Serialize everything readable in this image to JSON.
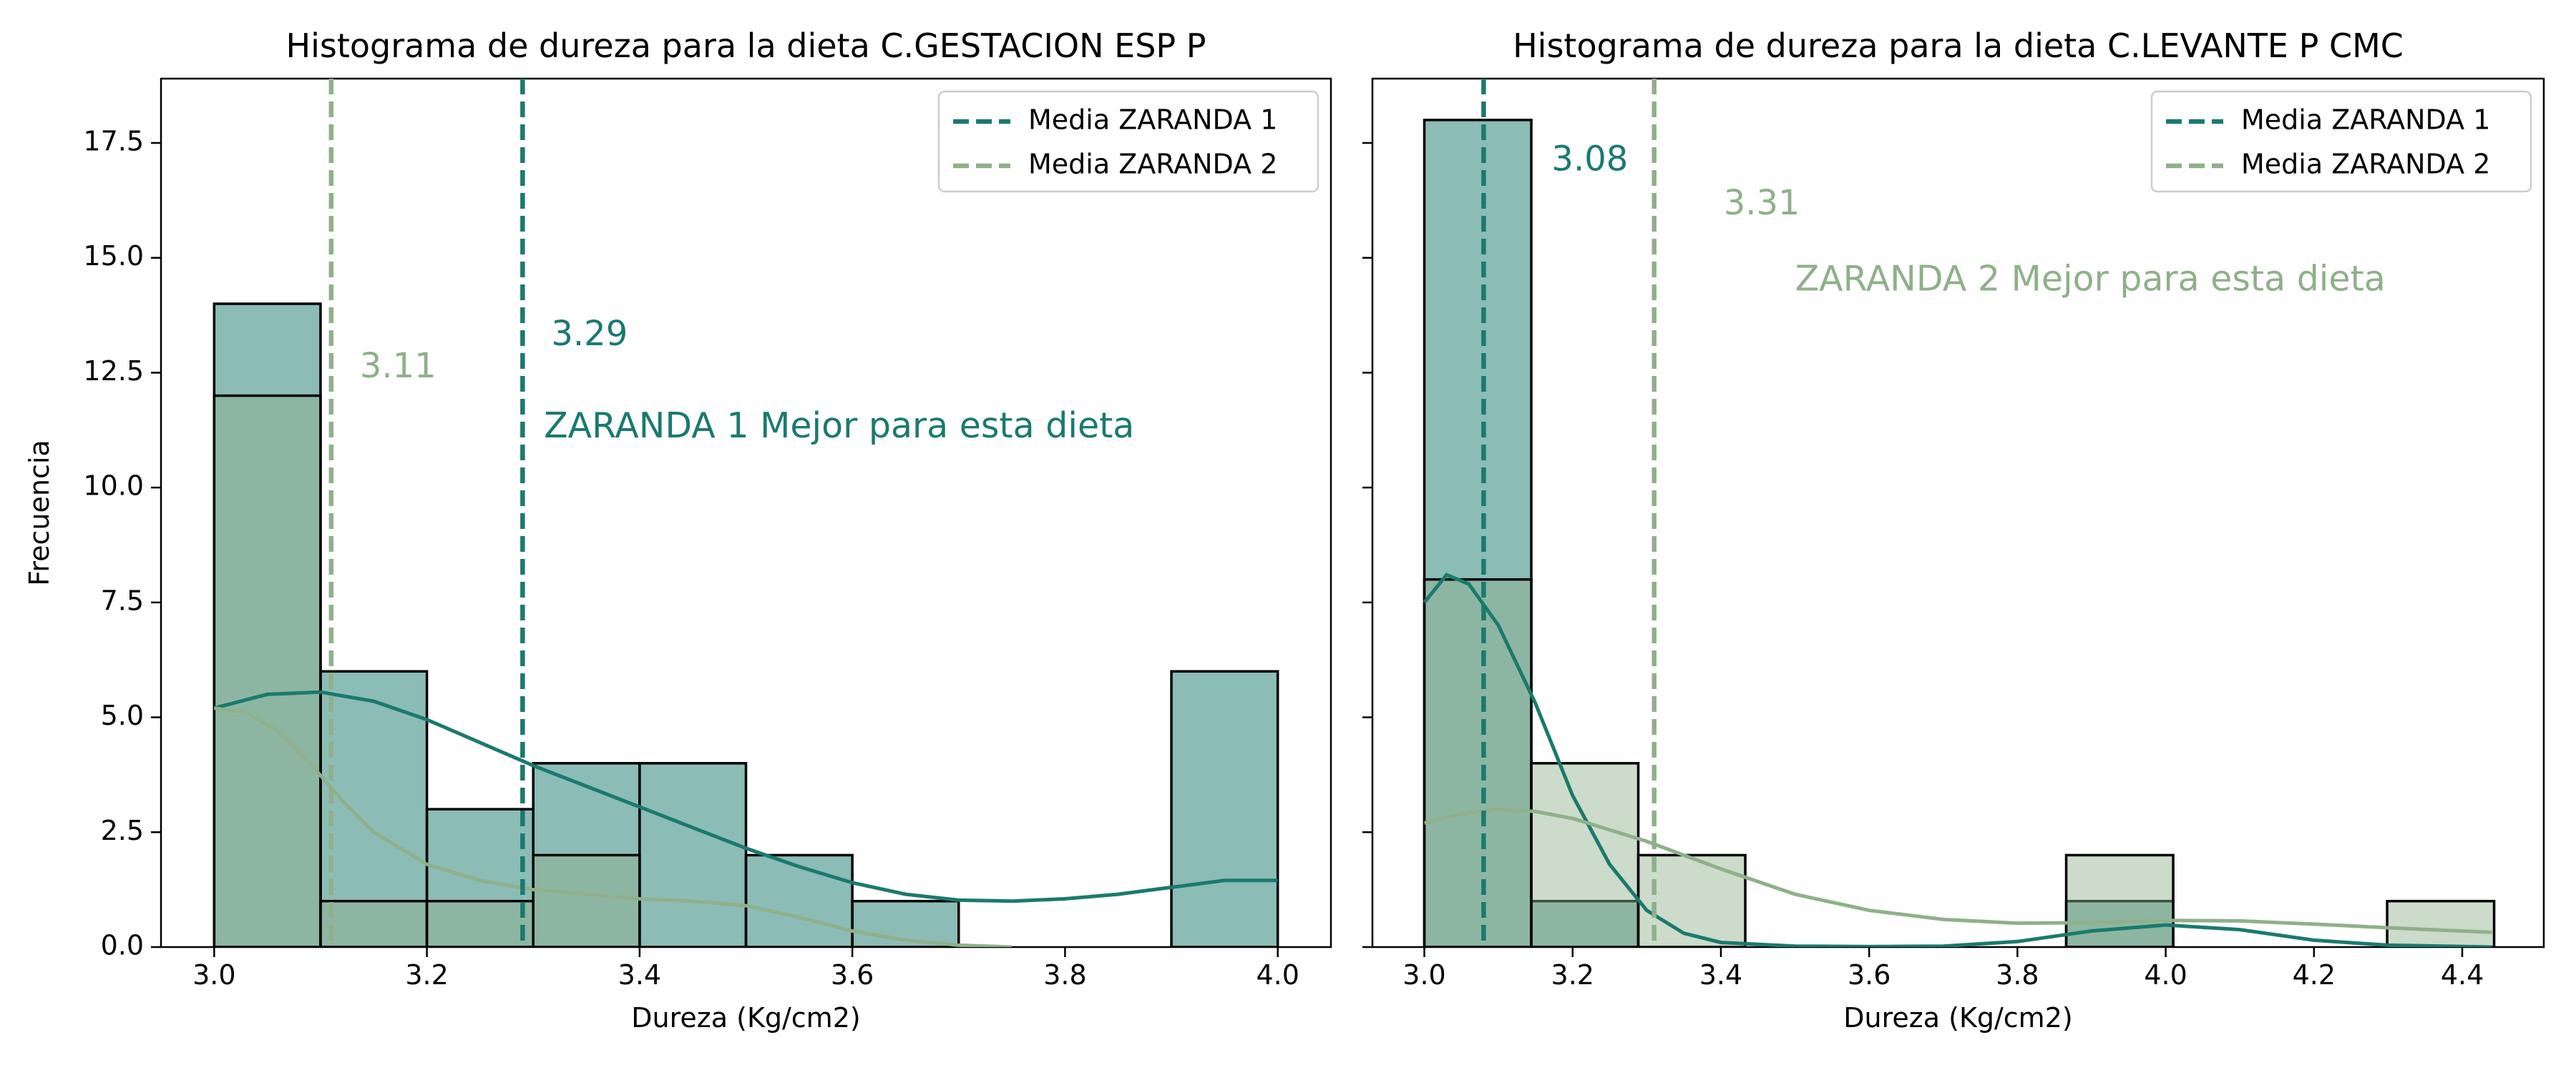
{
  "chart_data": [
    {
      "type": "histogram",
      "title": "Histograma de dureza para la dieta C.GESTACION ESP P",
      "xlabel": "Dureza (Kg/cm2)",
      "ylabel": "Frecuencia",
      "xlim": [
        2.95,
        4.05
      ],
      "ylim": [
        0,
        18.9
      ],
      "xticks": [
        3.0,
        3.2,
        3.4,
        3.6,
        3.8,
        4.0
      ],
      "xtick_labels": [
        "3.0",
        "3.2",
        "3.4",
        "3.6",
        "3.8",
        "4.0"
      ],
      "yticks": [
        0,
        2.5,
        5,
        7.5,
        10,
        12.5,
        15,
        17.5
      ],
      "ytick_labels": [
        "0.0",
        "2.5",
        "5.0",
        "7.5",
        "10.0",
        "12.5",
        "15.0",
        "17.5"
      ],
      "bin_edges": [
        3.0,
        3.1,
        3.2,
        3.3,
        3.4,
        3.5,
        3.6,
        3.7,
        3.8,
        3.9,
        4.0
      ],
      "grid": false,
      "legend_position": "upper right",
      "series": [
        {
          "name": "Media ZARANDA 1",
          "color": "#1a7a6e",
          "counts": [
            14,
            6,
            3,
            4,
            4,
            2,
            1,
            0,
            0,
            6
          ],
          "mean": 3.29,
          "mean_label": "3.29",
          "kde": [
            [
              3.0,
              5.2
            ],
            [
              3.05,
              5.5
            ],
            [
              3.1,
              5.55
            ],
            [
              3.15,
              5.35
            ],
            [
              3.2,
              4.95
            ],
            [
              3.25,
              4.45
            ],
            [
              3.3,
              3.95
            ],
            [
              3.35,
              3.5
            ],
            [
              3.4,
              3.05
            ],
            [
              3.45,
              2.6
            ],
            [
              3.5,
              2.15
            ],
            [
              3.55,
              1.75
            ],
            [
              3.6,
              1.4
            ],
            [
              3.65,
              1.15
            ],
            [
              3.7,
              1.02
            ],
            [
              3.75,
              1.0
            ],
            [
              3.8,
              1.05
            ],
            [
              3.85,
              1.15
            ],
            [
              3.9,
              1.3
            ],
            [
              3.95,
              1.45
            ],
            [
              4.0,
              1.45
            ]
          ]
        },
        {
          "name": "Media ZARANDA 2",
          "color": "#8fb08a",
          "counts": [
            12,
            1,
            1,
            2,
            0,
            0,
            0,
            0,
            0,
            0
          ],
          "mean": 3.11,
          "mean_label": "3.11",
          "kde": [
            [
              3.0,
              5.2
            ],
            [
              3.03,
              5.1
            ],
            [
              3.06,
              4.7
            ],
            [
              3.09,
              4.0
            ],
            [
              3.12,
              3.2
            ],
            [
              3.15,
              2.5
            ],
            [
              3.2,
              1.8
            ],
            [
              3.25,
              1.45
            ],
            [
              3.3,
              1.25
            ],
            [
              3.35,
              1.15
            ],
            [
              3.4,
              1.05
            ],
            [
              3.45,
              1.0
            ],
            [
              3.5,
              0.9
            ],
            [
              3.55,
              0.65
            ],
            [
              3.6,
              0.35
            ],
            [
              3.65,
              0.15
            ],
            [
              3.7,
              0.04
            ],
            [
              3.75,
              0.0
            ]
          ]
        }
      ],
      "annotation": {
        "text": "ZARANDA 1 Mejor para esta dieta",
        "color": "#1a7a6e",
        "x": 3.31,
        "y": 11.3
      }
    },
    {
      "type": "histogram",
      "title": "Histograma de dureza para la dieta C.LEVANTE P CMC",
      "xlabel": "Dureza (Kg/cm2)",
      "ylabel": "",
      "xlim": [
        2.93,
        4.51
      ],
      "ylim": [
        0,
        18.9
      ],
      "xticks": [
        3.0,
        3.2,
        3.4,
        3.6,
        3.8,
        4.0,
        4.2,
        4.4
      ],
      "xtick_labels": [
        "3.0",
        "3.2",
        "3.4",
        "3.6",
        "3.8",
        "4.0",
        "4.2",
        "4.4"
      ],
      "yticks": [
        0,
        2.5,
        5,
        7.5,
        10,
        12.5,
        15,
        17.5
      ],
      "ytick_labels": [],
      "bin_edges": [
        3.0,
        3.1443,
        3.2886,
        3.4329,
        3.5772,
        3.7215,
        3.8658,
        4.0101,
        4.1544,
        4.2987,
        4.443
      ],
      "grid": false,
      "legend_position": "upper right",
      "series": [
        {
          "name": "Media ZARANDA 1",
          "color": "#1a7a6e",
          "counts": [
            18,
            1,
            0,
            0,
            0,
            0,
            1,
            0,
            0,
            0
          ],
          "mean": 3.08,
          "mean_label": "3.08",
          "kde": [
            [
              3.0,
              7.5
            ],
            [
              3.03,
              8.1
            ],
            [
              3.06,
              7.9
            ],
            [
              3.1,
              7.0
            ],
            [
              3.15,
              5.3
            ],
            [
              3.2,
              3.3
            ],
            [
              3.25,
              1.8
            ],
            [
              3.3,
              0.8
            ],
            [
              3.35,
              0.3
            ],
            [
              3.4,
              0.1
            ],
            [
              3.5,
              0.02
            ],
            [
              3.6,
              0.01
            ],
            [
              3.7,
              0.02
            ],
            [
              3.8,
              0.12
            ],
            [
              3.9,
              0.35
            ],
            [
              4.0,
              0.48
            ],
            [
              4.1,
              0.38
            ],
            [
              4.2,
              0.15
            ],
            [
              4.3,
              0.04
            ],
            [
              4.44,
              0.0
            ]
          ]
        },
        {
          "name": "Media ZARANDA 2",
          "color": "#8fb08a",
          "counts": [
            8,
            4,
            2,
            0,
            0,
            0,
            2,
            0,
            0,
            1
          ],
          "mean": 3.31,
          "mean_label": "3.31",
          "kde": [
            [
              3.0,
              2.7
            ],
            [
              3.05,
              2.9
            ],
            [
              3.1,
              3.0
            ],
            [
              3.15,
              2.95
            ],
            [
              3.2,
              2.8
            ],
            [
              3.3,
              2.3
            ],
            [
              3.4,
              1.7
            ],
            [
              3.5,
              1.15
            ],
            [
              3.6,
              0.8
            ],
            [
              3.7,
              0.6
            ],
            [
              3.8,
              0.52
            ],
            [
              3.9,
              0.53
            ],
            [
              4.0,
              0.58
            ],
            [
              4.1,
              0.57
            ],
            [
              4.2,
              0.5
            ],
            [
              4.3,
              0.42
            ],
            [
              4.44,
              0.32
            ]
          ]
        }
      ],
      "annotation": {
        "text": "ZARANDA 2 Mejor para esta dieta",
        "color": "#8fb08a",
        "x": 3.5,
        "y": 14.5
      }
    }
  ]
}
